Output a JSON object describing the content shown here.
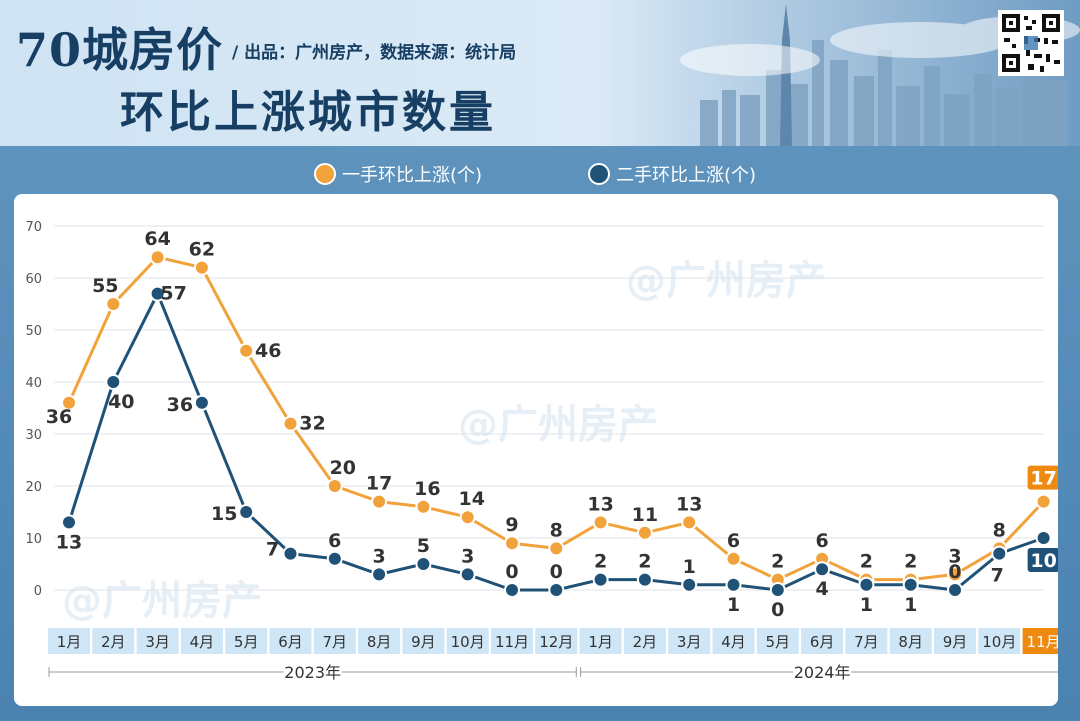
{
  "header": {
    "title_line1": "70城房价",
    "subtitle": "/ 出品：广州房产，数据来源：统计局",
    "title_line2": "环比上涨城市数量"
  },
  "icons": {
    "qr": "qr-code-icon"
  },
  "watermark": "@广州房产",
  "colors": {
    "series1": "#f2a23a",
    "series2": "#1f5276",
    "highlight": "#ef8a10",
    "month_bg": "#cfe6f7",
    "label_dark": "#333333"
  },
  "chart_data": {
    "type": "line",
    "categories": [
      "1月",
      "2月",
      "3月",
      "4月",
      "5月",
      "6月",
      "7月",
      "8月",
      "9月",
      "10月",
      "11月",
      "12月",
      "1月",
      "2月",
      "3月",
      "4月",
      "5月",
      "6月",
      "7月",
      "8月",
      "9月",
      "10月",
      "11月"
    ],
    "year_groups": [
      {
        "label": "2023年",
        "start": 0,
        "end": 11
      },
      {
        "label": "2024年",
        "start": 12,
        "end": 22
      }
    ],
    "series": [
      {
        "name": "一手环比上涨(个)",
        "values": [
          36,
          55,
          64,
          62,
          46,
          32,
          20,
          17,
          16,
          14,
          9,
          8,
          13,
          11,
          13,
          6,
          2,
          6,
          2,
          2,
          3,
          8,
          17
        ]
      },
      {
        "name": "二手环比上涨(个)",
        "values": [
          13,
          40,
          57,
          36,
          15,
          7,
          6,
          3,
          5,
          3,
          0,
          0,
          2,
          2,
          1,
          1,
          0,
          4,
          1,
          1,
          0,
          7,
          10
        ]
      }
    ],
    "ylim": [
      0,
      70
    ],
    "yticks": [
      0,
      10,
      20,
      30,
      40,
      50,
      60,
      70
    ],
    "grid": true,
    "legend": "top"
  }
}
